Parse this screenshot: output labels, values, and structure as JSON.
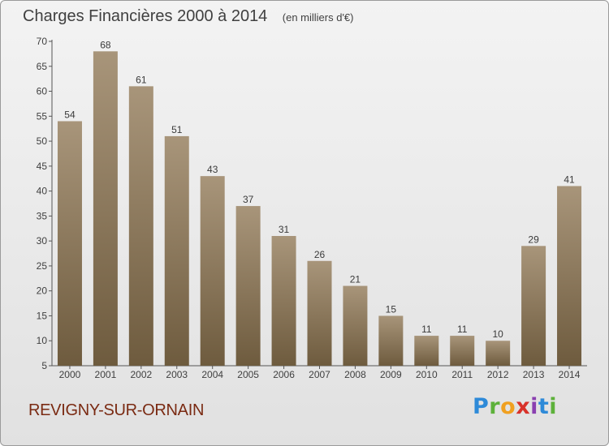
{
  "chart_data": {
    "type": "bar",
    "title": "Charges Financières 2000 à 2014",
    "subtitle": "(en milliers d'€)",
    "categories": [
      "2000",
      "2001",
      "2002",
      "2003",
      "2004",
      "2005",
      "2006",
      "2007",
      "2008",
      "2009",
      "2010",
      "2011",
      "2012",
      "2013",
      "2014"
    ],
    "values": [
      54,
      68,
      61,
      51,
      43,
      37,
      31,
      26,
      21,
      15,
      11,
      11,
      10,
      29,
      41
    ],
    "ylim": [
      5,
      70
    ],
    "yticks": [
      5,
      10,
      15,
      20,
      25,
      30,
      35,
      40,
      45,
      50,
      55,
      60,
      65,
      70
    ],
    "xlabel": "",
    "ylabel": "",
    "grid": false,
    "bar_color_top": "#a8957a",
    "bar_color_bottom": "#6e5b3e"
  },
  "footer": {
    "town": "REVIGNY-SUR-ORNAIN",
    "logo_letters": [
      "P",
      "r",
      "o",
      "x",
      "i",
      "t",
      "i"
    ]
  }
}
